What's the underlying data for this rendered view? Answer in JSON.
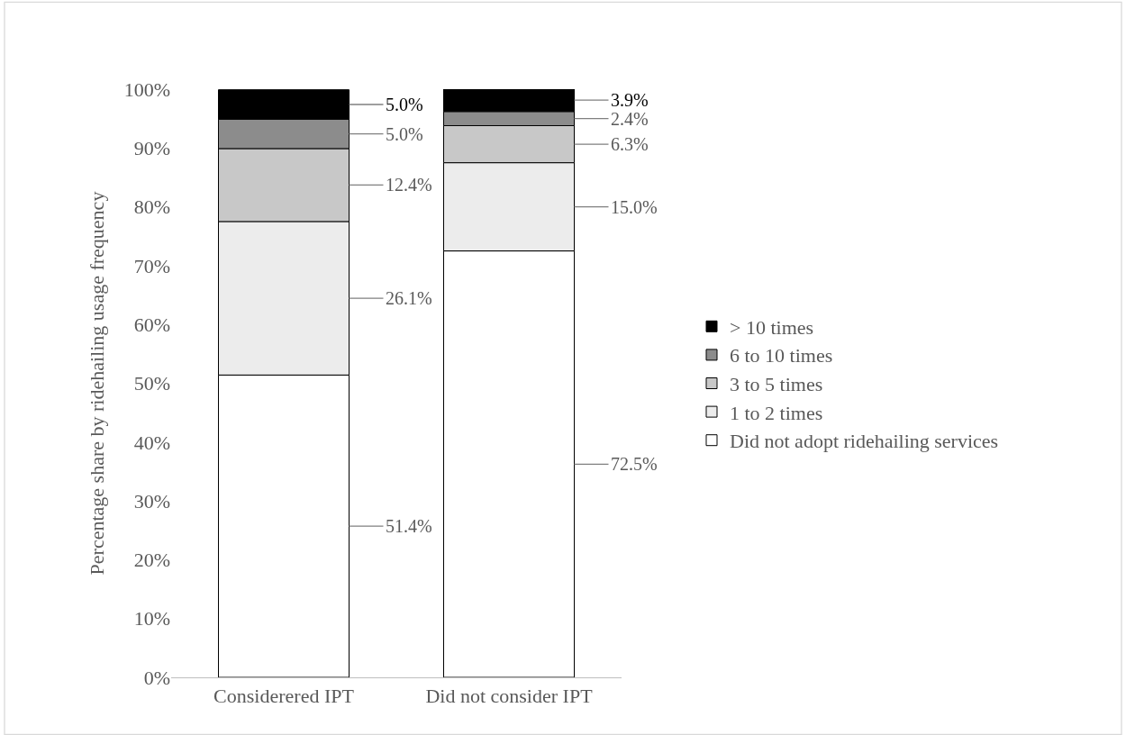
{
  "chart_data": {
    "type": "bar",
    "stacked": true,
    "ylabel": "Percentage share by ridehailing usage frequency",
    "categories": [
      "Considerered IPT",
      "Did not consider IPT"
    ],
    "series": [
      {
        "name": "Did not adopt ridehailing services",
        "color": "#ffffff",
        "values": [
          51.4,
          72.5
        ],
        "value_labels": [
          "51.4%",
          "72.5%"
        ]
      },
      {
        "name": "1 to 2 times",
        "color": "#ececec",
        "values": [
          26.1,
          15.0
        ],
        "value_labels": [
          "26.1%",
          "15.0%"
        ]
      },
      {
        "name": "3 to 5 times",
        "color": "#c8c8c8",
        "values": [
          12.4,
          6.3
        ],
        "value_labels": [
          "12.4%",
          "6.3%"
        ]
      },
      {
        "name": "6 to 10 times",
        "color": "#8c8c8c",
        "values": [
          5.0,
          2.4
        ],
        "value_labels": [
          "5.0%",
          "2.4%"
        ]
      },
      {
        "name": "> 10 times",
        "color": "#000000",
        "values": [
          5.0,
          3.9
        ],
        "value_labels": [
          "5.0%",
          "3.9%"
        ]
      }
    ],
    "ylim": [
      0,
      100
    ],
    "yticks": [
      {
        "value": 0,
        "label": "0%"
      },
      {
        "value": 10,
        "label": "10%"
      },
      {
        "value": 20,
        "label": "20%"
      },
      {
        "value": 30,
        "label": "30%"
      },
      {
        "value": 40,
        "label": "40%"
      },
      {
        "value": 50,
        "label": "50%"
      },
      {
        "value": 60,
        "label": "60%"
      },
      {
        "value": 70,
        "label": "70%"
      },
      {
        "value": 80,
        "label": "80%"
      },
      {
        "value": 90,
        "label": "90%"
      },
      {
        "value": 100,
        "label": "100%"
      }
    ],
    "legend": "right"
  }
}
